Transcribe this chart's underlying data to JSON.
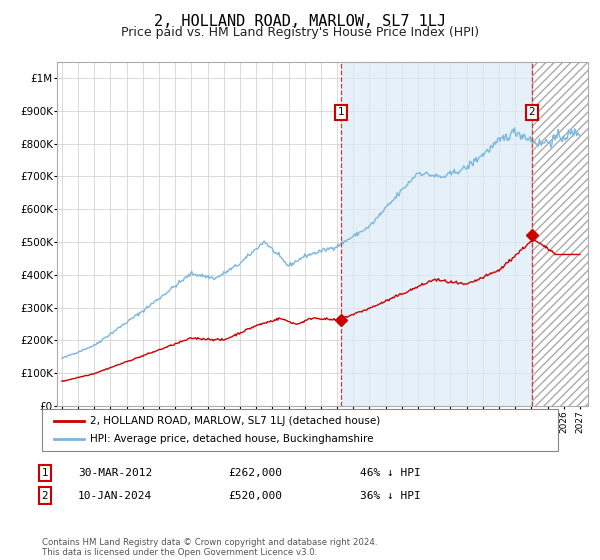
{
  "title": "2, HOLLAND ROAD, MARLOW, SL7 1LJ",
  "subtitle": "Price paid vs. HM Land Registry's House Price Index (HPI)",
  "ylim": [
    0,
    1050000
  ],
  "xlim_start": 1994.7,
  "xlim_end": 2027.5,
  "hpi_color": "#7ab8de",
  "hpi_fill_color": "#daeaf7",
  "price_color": "#cc0000",
  "marker_color": "#cc0000",
  "background_color": "#ffffff",
  "grid_color": "#cccccc",
  "transaction1_x": 2012.24,
  "transaction1_y": 262000,
  "transaction2_x": 2024.03,
  "transaction2_y": 520000,
  "vline_color": "#dd3333",
  "legend_line1": "2, HOLLAND ROAD, MARLOW, SL7 1LJ (detached house)",
  "legend_line2": "HPI: Average price, detached house, Buckinghamshire",
  "annotation1_date": "30-MAR-2012",
  "annotation1_price": "£262,000",
  "annotation1_hpi": "46% ↓ HPI",
  "annotation2_date": "10-JAN-2024",
  "annotation2_price": "£520,000",
  "annotation2_hpi": "36% ↓ HPI",
  "footer": "Contains HM Land Registry data © Crown copyright and database right 2024.\nThis data is licensed under the Open Government Licence v3.0.",
  "hatch_region_start": 2024.03,
  "title_fontsize": 11,
  "subtitle_fontsize": 9
}
